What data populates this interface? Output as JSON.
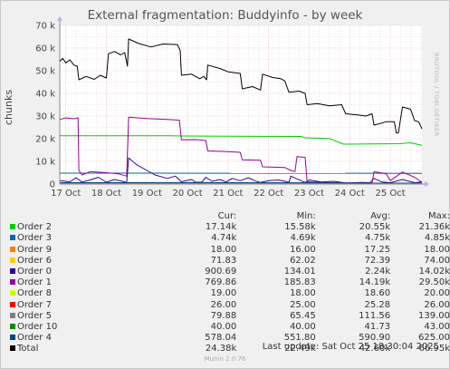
{
  "title": "External fragmentation: Buddyinfo - by week",
  "vendor_label": "RRDTOOL / TOBI OETIKER",
  "footer": "Munin 2.0.76",
  "last_update": "Last update: Sat Oct 25 18:30:04 2025",
  "colors": {
    "background": "#f0f0f0",
    "plot_background": "#ffffff",
    "grid_minor": "#e6c8c8",
    "grid_major": "#f0b4b4",
    "axis": "#888888",
    "arrow": "#b0b0ff"
  },
  "chart_data": {
    "type": "line",
    "title": "External fragmentation: Buddyinfo - by week",
    "ylabel": "chunks",
    "xlabel": "",
    "ylim": [
      0,
      70000
    ],
    "y_ticks": [
      0,
      10000,
      20000,
      30000,
      40000,
      50000,
      60000,
      70000
    ],
    "y_tick_labels": [
      "0",
      "10 k",
      "20 k",
      "30 k",
      "40 k",
      "50 k",
      "60 k",
      "70 k"
    ],
    "x_tick_labels": [
      "17 Oct",
      "18 Oct",
      "19 Oct",
      "20 Oct",
      "21 Oct",
      "22 Oct",
      "23 Oct",
      "24 Oct",
      "25 Oct"
    ],
    "x_range_days": [
      16.85,
      25.78
    ],
    "grid": true,
    "legend_position": "bottom",
    "legend_headers": [
      "",
      "Cur:",
      "Min:",
      "Avg:",
      "Max:"
    ],
    "series": [
      {
        "name": "Order 2",
        "color": "#00cc00",
        "cur": "17.14k",
        "min": "15.58k",
        "avg": "20.55k",
        "max": "21.36k",
        "points": [
          [
            16.85,
            21300
          ],
          [
            19.6,
            21300
          ],
          [
            19.85,
            21200
          ],
          [
            22.8,
            21000
          ],
          [
            22.9,
            20400
          ],
          [
            23.5,
            20100
          ],
          [
            23.85,
            17600
          ],
          [
            25.2,
            17800
          ],
          [
            25.5,
            18200
          ],
          [
            25.78,
            17100
          ]
        ]
      },
      {
        "name": "Order 3",
        "color": "#0066b3",
        "cur": "4.74k",
        "min": "4.69k",
        "avg": "4.75k",
        "max": "4.85k",
        "points": [
          [
            16.85,
            4800
          ],
          [
            25.78,
            4740
          ]
        ]
      },
      {
        "name": "Order 9",
        "color": "#ff8000",
        "cur": "18.00",
        "min": "16.00",
        "avg": "17.25",
        "max": "18.00",
        "points": [
          [
            16.85,
            17
          ],
          [
            25.78,
            18
          ]
        ]
      },
      {
        "name": "Order 6",
        "color": "#ffcc00",
        "cur": "71.83",
        "min": "62.02",
        "avg": "72.39",
        "max": "74.00",
        "points": [
          [
            16.85,
            72
          ],
          [
            25.78,
            72
          ]
        ]
      },
      {
        "name": "Order 0",
        "color": "#330099",
        "cur": "900.69",
        "min": "134.01",
        "avg": "2.24k",
        "max": "14.02k",
        "points": [
          [
            16.85,
            1500
          ],
          [
            17.1,
            1000
          ],
          [
            17.25,
            2800
          ],
          [
            17.4,
            900
          ],
          [
            17.6,
            1800
          ],
          [
            17.8,
            3000
          ],
          [
            18.0,
            800
          ],
          [
            18.2,
            2000
          ],
          [
            18.4,
            1200
          ],
          [
            18.5,
            700
          ],
          [
            18.55,
            11500
          ],
          [
            18.75,
            8500
          ],
          [
            19.0,
            6000
          ],
          [
            19.2,
            4000
          ],
          [
            19.5,
            2500
          ],
          [
            19.7,
            3500
          ],
          [
            19.85,
            1000
          ],
          [
            20.1,
            2000
          ],
          [
            20.2,
            800
          ],
          [
            20.35,
            800
          ],
          [
            20.45,
            3000
          ],
          [
            20.6,
            1200
          ],
          [
            20.8,
            2000
          ],
          [
            20.95,
            900
          ],
          [
            21.1,
            2500
          ],
          [
            21.3,
            1500
          ],
          [
            21.5,
            2800
          ],
          [
            21.65,
            1500
          ],
          [
            21.8,
            700
          ],
          [
            22.0,
            1500
          ],
          [
            22.25,
            1800
          ],
          [
            22.5,
            800
          ],
          [
            22.55,
            3500
          ],
          [
            22.8,
            1500
          ],
          [
            22.9,
            700
          ],
          [
            23.0,
            1800
          ],
          [
            23.3,
            900
          ],
          [
            23.6,
            1200
          ],
          [
            23.9,
            500
          ],
          [
            24.3,
            700
          ],
          [
            24.5,
            600
          ],
          [
            24.6,
            2500
          ],
          [
            24.8,
            900
          ],
          [
            25.0,
            600
          ],
          [
            25.3,
            2000
          ],
          [
            25.6,
            600
          ],
          [
            25.78,
            900
          ]
        ]
      },
      {
        "name": "Order 1",
        "color": "#990099",
        "cur": "769.86",
        "min": "185.83",
        "avg": "14.19k",
        "max": "29.50k",
        "points": [
          [
            16.85,
            28500
          ],
          [
            17.0,
            29200
          ],
          [
            17.2,
            28800
          ],
          [
            17.3,
            29300
          ],
          [
            17.32,
            6000
          ],
          [
            17.4,
            4000
          ],
          [
            17.6,
            5500
          ],
          [
            18.0,
            5000
          ],
          [
            18.3,
            4500
          ],
          [
            18.5,
            3500
          ],
          [
            18.55,
            29500
          ],
          [
            19.0,
            28900
          ],
          [
            19.5,
            28500
          ],
          [
            19.8,
            28200
          ],
          [
            19.85,
            19500
          ],
          [
            20.2,
            19600
          ],
          [
            20.45,
            19200
          ],
          [
            20.5,
            14600
          ],
          [
            21.0,
            14300
          ],
          [
            21.3,
            14000
          ],
          [
            21.35,
            10700
          ],
          [
            21.8,
            10500
          ],
          [
            21.85,
            7600
          ],
          [
            22.4,
            7300
          ],
          [
            22.55,
            6000
          ],
          [
            22.65,
            5500
          ],
          [
            22.7,
            12100
          ],
          [
            22.9,
            11800
          ],
          [
            22.95,
            1000
          ],
          [
            23.2,
            800
          ],
          [
            23.5,
            600
          ],
          [
            23.9,
            500
          ],
          [
            24.4,
            400
          ],
          [
            24.55,
            400
          ],
          [
            24.6,
            5500
          ],
          [
            24.9,
            4500
          ],
          [
            25.0,
            1500
          ],
          [
            25.3,
            5300
          ],
          [
            25.6,
            3000
          ],
          [
            25.78,
            800
          ]
        ]
      },
      {
        "name": "Order 8",
        "color": "#ccff00",
        "cur": "19.00",
        "min": "18.00",
        "avg": "18.60",
        "max": "20.00",
        "points": [
          [
            16.85,
            19
          ],
          [
            25.78,
            19
          ]
        ]
      },
      {
        "name": "Order 7",
        "color": "#ff0000",
        "cur": "26.00",
        "min": "25.00",
        "avg": "25.28",
        "max": "26.00",
        "points": [
          [
            16.85,
            25
          ],
          [
            25.78,
            26
          ]
        ]
      },
      {
        "name": "Order 5",
        "color": "#808080",
        "cur": "79.88",
        "min": "65.45",
        "avg": "111.56",
        "max": "139.00",
        "points": [
          [
            16.85,
            110
          ],
          [
            25.78,
            80
          ]
        ]
      },
      {
        "name": "Order 10",
        "color": "#008f00",
        "cur": "40.00",
        "min": "40.00",
        "avg": "41.73",
        "max": "43.00",
        "points": [
          [
            16.85,
            42
          ],
          [
            25.78,
            40
          ]
        ]
      },
      {
        "name": "Order 4",
        "color": "#00487d",
        "cur": "578.04",
        "min": "551.80",
        "avg": "590.90",
        "max": "625.00",
        "points": [
          [
            16.85,
            600
          ],
          [
            25.78,
            580
          ]
        ]
      },
      {
        "name": "Total",
        "color": "#000000",
        "cur": "24.38k",
        "min": "22.49k",
        "avg": "42.60k",
        "max": "66.95k",
        "points": [
          [
            16.85,
            54000
          ],
          [
            16.92,
            55500
          ],
          [
            17.0,
            53500
          ],
          [
            17.1,
            54800
          ],
          [
            17.2,
            52500
          ],
          [
            17.28,
            52000
          ],
          [
            17.32,
            46000
          ],
          [
            17.5,
            47500
          ],
          [
            17.7,
            46200
          ],
          [
            17.85,
            48000
          ],
          [
            18.0,
            46800
          ],
          [
            18.05,
            57500
          ],
          [
            18.2,
            58500
          ],
          [
            18.35,
            57000
          ],
          [
            18.45,
            58000
          ],
          [
            18.52,
            52000
          ],
          [
            18.55,
            64000
          ],
          [
            18.8,
            62000
          ],
          [
            19.1,
            60500
          ],
          [
            19.4,
            61800
          ],
          [
            19.75,
            61500
          ],
          [
            19.82,
            59000
          ],
          [
            19.85,
            48000
          ],
          [
            20.1,
            48500
          ],
          [
            20.3,
            46500
          ],
          [
            20.4,
            47500
          ],
          [
            20.47,
            46000
          ],
          [
            20.5,
            52500
          ],
          [
            20.8,
            51000
          ],
          [
            21.0,
            49500
          ],
          [
            21.3,
            48800
          ],
          [
            21.35,
            42000
          ],
          [
            21.6,
            43000
          ],
          [
            21.8,
            41500
          ],
          [
            21.85,
            48500
          ],
          [
            22.1,
            47000
          ],
          [
            22.3,
            46500
          ],
          [
            22.4,
            45500
          ],
          [
            22.5,
            40500
          ],
          [
            22.75,
            41000
          ],
          [
            22.9,
            40000
          ],
          [
            22.95,
            35000
          ],
          [
            23.2,
            35500
          ],
          [
            23.5,
            34500
          ],
          [
            23.8,
            35000
          ],
          [
            23.9,
            31000
          ],
          [
            24.2,
            30500
          ],
          [
            24.4,
            30000
          ],
          [
            24.55,
            31000
          ],
          [
            24.6,
            26000
          ],
          [
            24.9,
            27500
          ],
          [
            25.1,
            27500
          ],
          [
            25.15,
            22500
          ],
          [
            25.2,
            22600
          ],
          [
            25.3,
            34000
          ],
          [
            25.5,
            33000
          ],
          [
            25.6,
            28000
          ],
          [
            25.7,
            27500
          ],
          [
            25.78,
            24400
          ]
        ]
      }
    ]
  }
}
